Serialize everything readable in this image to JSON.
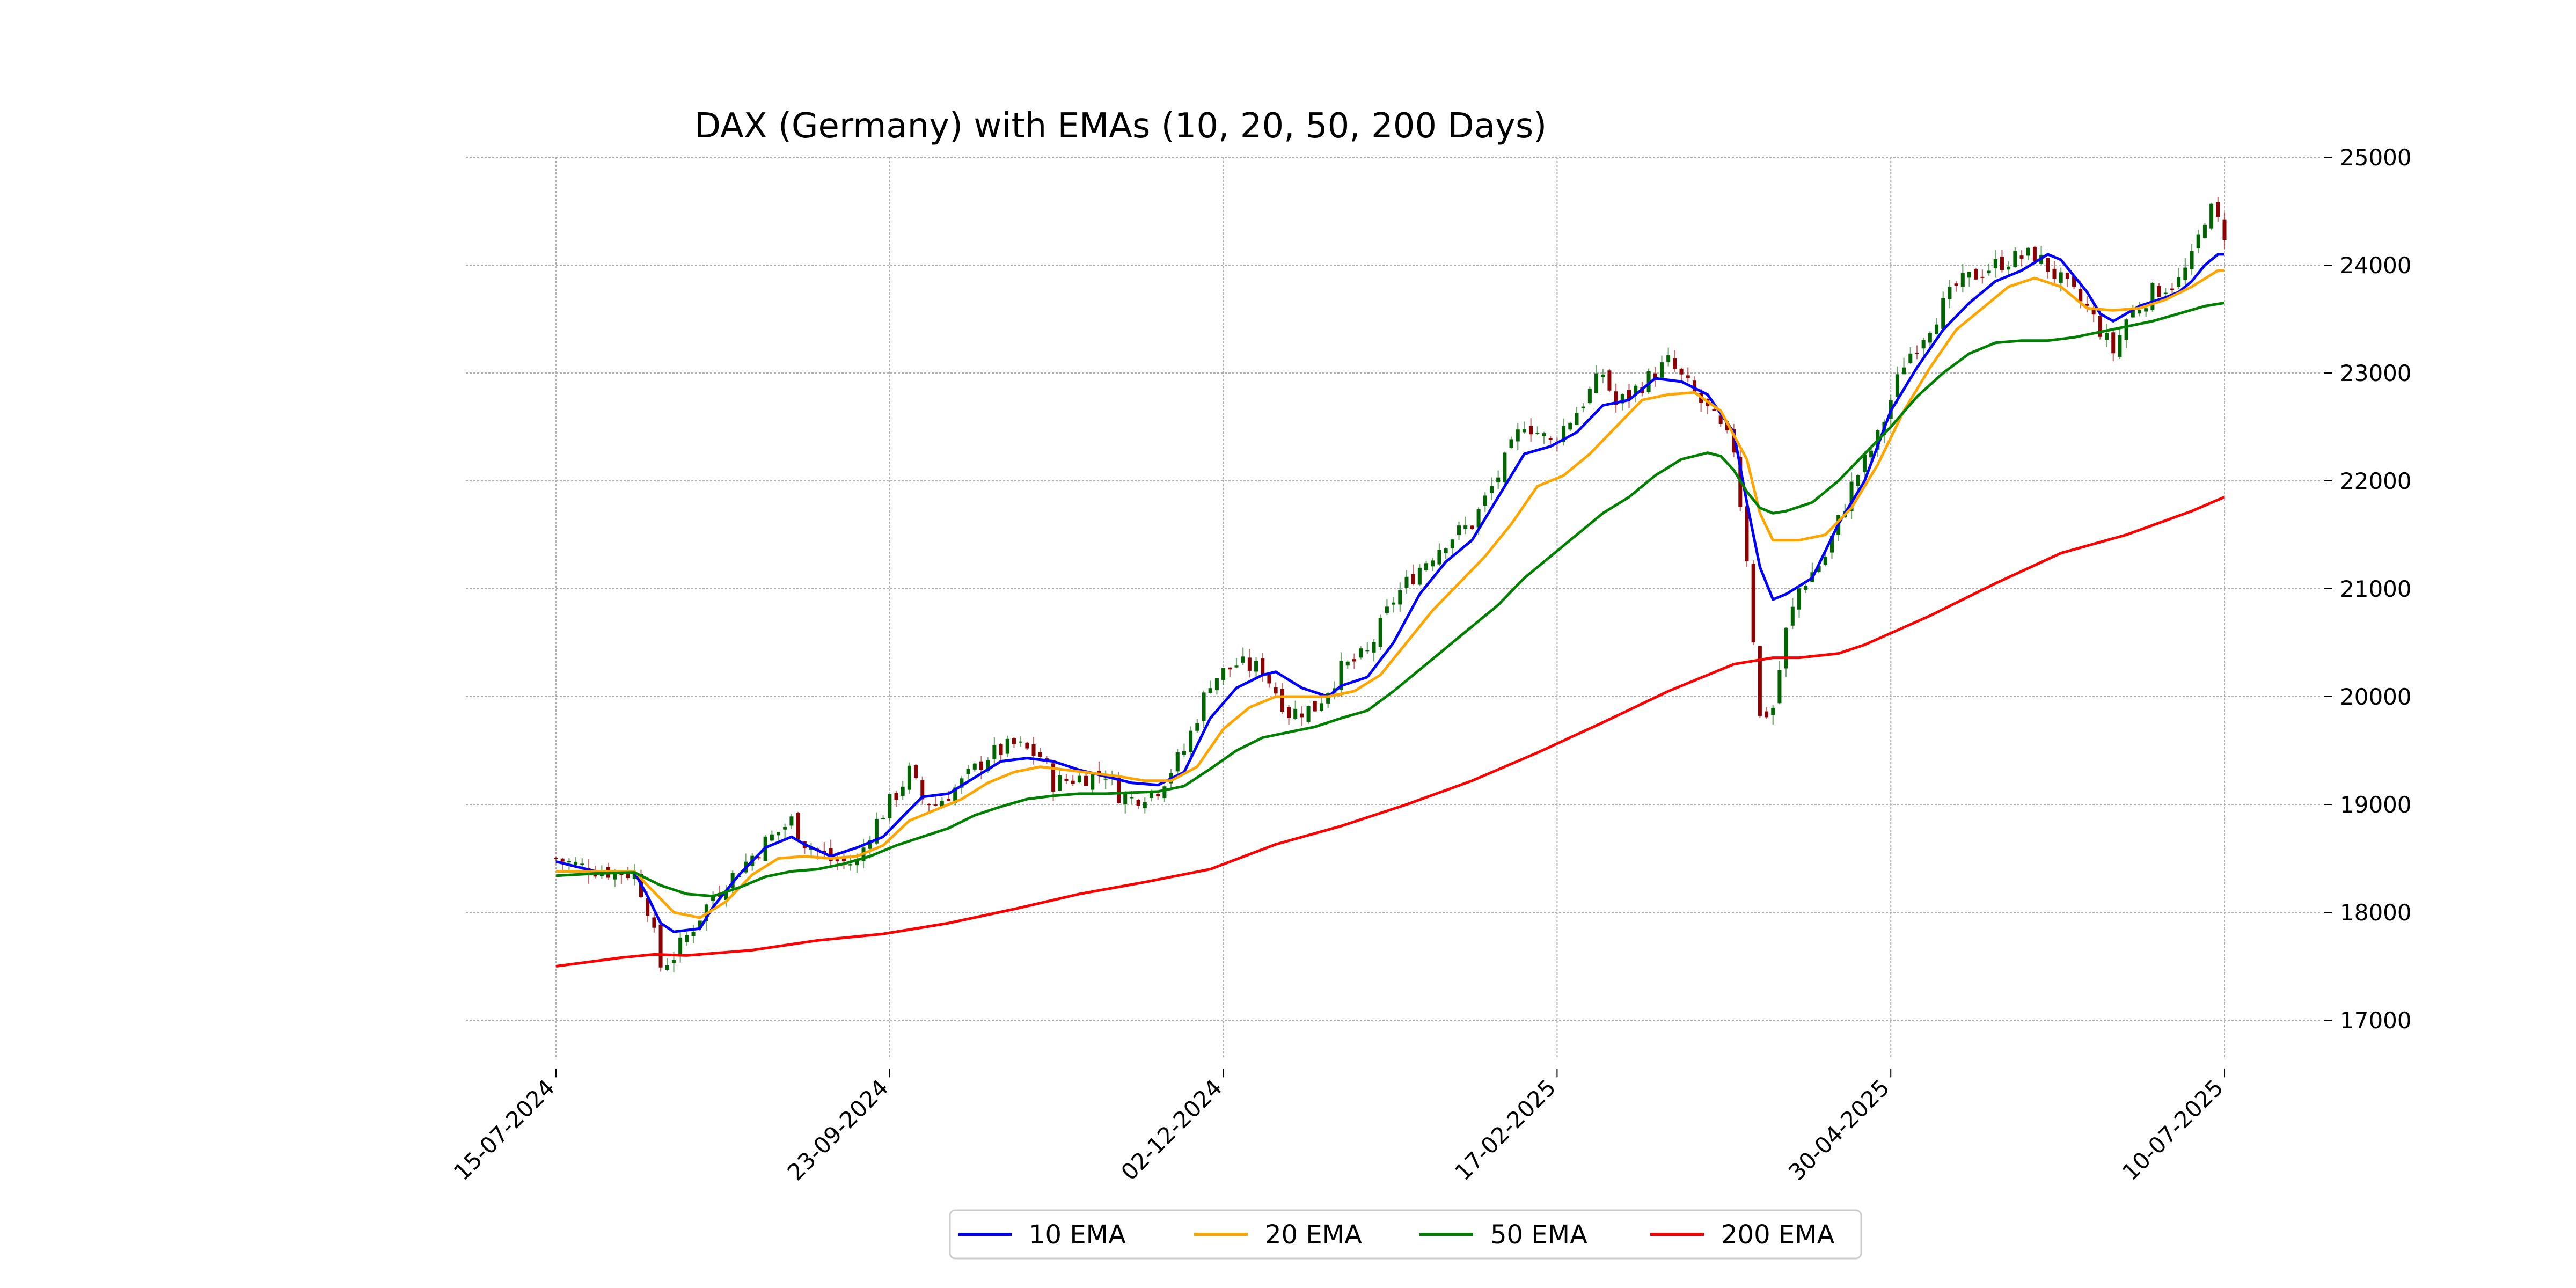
{
  "chart_data": {
    "type": "line",
    "title": "DAX (Germany) with EMAs (10, 20, 50, 200 Days)",
    "xlabel": "",
    "ylabel": "",
    "x_ticks": [
      "15-07-2024",
      "23-09-2024",
      "02-12-2024",
      "17-02-2025",
      "30-04-2025",
      "10-07-2025"
    ],
    "x_range": [
      0,
      255
    ],
    "y_ticks": [
      17000,
      18000,
      19000,
      20000,
      21000,
      22000,
      23000,
      24000,
      25000
    ],
    "ylim": [
      16650,
      25000
    ],
    "grid": true,
    "legend_position": "bottom-center",
    "candlestick": {
      "up_color": "#006400",
      "down_color": "#8b0000",
      "anchors": [
        [
          0,
          18500
        ],
        [
          4,
          18420
        ],
        [
          8,
          18380
        ],
        [
          12,
          18360
        ],
        [
          14,
          18050
        ],
        [
          16,
          17500
        ],
        [
          18,
          17600
        ],
        [
          20,
          17780
        ],
        [
          24,
          18150
        ],
        [
          28,
          18400
        ],
        [
          32,
          18650
        ],
        [
          36,
          18850
        ],
        [
          38,
          18650
        ],
        [
          42,
          18480
        ],
        [
          46,
          18450
        ],
        [
          48,
          18750
        ],
        [
          52,
          19100
        ],
        [
          54,
          19300
        ],
        [
          56,
          19050
        ],
        [
          58,
          19000
        ],
        [
          62,
          19200
        ],
        [
          66,
          19450
        ],
        [
          70,
          19550
        ],
        [
          74,
          19450
        ],
        [
          76,
          19200
        ],
        [
          80,
          19250
        ],
        [
          84,
          19300
        ],
        [
          86,
          19100
        ],
        [
          88,
          19050
        ],
        [
          92,
          19150
        ],
        [
          96,
          19500
        ],
        [
          100,
          20150
        ],
        [
          104,
          20300
        ],
        [
          108,
          20250
        ],
        [
          112,
          19850
        ],
        [
          116,
          19900
        ],
        [
          120,
          20250
        ],
        [
          124,
          20400
        ],
        [
          128,
          20900
        ],
        [
          132,
          21200
        ],
        [
          136,
          21450
        ],
        [
          140,
          21600
        ],
        [
          144,
          22050
        ],
        [
          148,
          22550
        ],
        [
          152,
          22350
        ],
        [
          156,
          22650
        ],
        [
          160,
          23000
        ],
        [
          162,
          22700
        ],
        [
          166,
          22900
        ],
        [
          170,
          23100
        ],
        [
          174,
          22800
        ],
        [
          176,
          22650
        ],
        [
          180,
          22300
        ],
        [
          182,
          21300
        ],
        [
          184,
          19800
        ],
        [
          186,
          19900
        ],
        [
          188,
          20600
        ],
        [
          190,
          21000
        ],
        [
          194,
          21300
        ],
        [
          198,
          21950
        ],
        [
          202,
          22400
        ],
        [
          206,
          23100
        ],
        [
          210,
          23450
        ],
        [
          214,
          23800
        ],
        [
          218,
          23950
        ],
        [
          222,
          24050
        ],
        [
          226,
          24100
        ],
        [
          230,
          23850
        ],
        [
          234,
          23600
        ],
        [
          236,
          23400
        ],
        [
          238,
          23200
        ],
        [
          240,
          23500
        ],
        [
          244,
          23750
        ],
        [
          248,
          23850
        ],
        [
          250,
          24050
        ],
        [
          252,
          24450
        ],
        [
          253,
          24500
        ],
        [
          255,
          24300
        ]
      ]
    },
    "series": [
      {
        "name": "10 EMA",
        "color": "#0000ff",
        "points": [
          [
            0,
            18470
          ],
          [
            6,
            18380
          ],
          [
            12,
            18370
          ],
          [
            14,
            18150
          ],
          [
            16,
            17900
          ],
          [
            18,
            17820
          ],
          [
            22,
            17850
          ],
          [
            24,
            18050
          ],
          [
            28,
            18350
          ],
          [
            32,
            18600
          ],
          [
            36,
            18700
          ],
          [
            38,
            18630
          ],
          [
            42,
            18520
          ],
          [
            46,
            18600
          ],
          [
            50,
            18700
          ],
          [
            54,
            18950
          ],
          [
            56,
            19070
          ],
          [
            60,
            19100
          ],
          [
            64,
            19250
          ],
          [
            68,
            19400
          ],
          [
            72,
            19430
          ],
          [
            76,
            19400
          ],
          [
            80,
            19320
          ],
          [
            84,
            19260
          ],
          [
            88,
            19200
          ],
          [
            92,
            19180
          ],
          [
            96,
            19300
          ],
          [
            100,
            19800
          ],
          [
            104,
            20080
          ],
          [
            108,
            20200
          ],
          [
            110,
            20230
          ],
          [
            114,
            20080
          ],
          [
            118,
            20000
          ],
          [
            120,
            20100
          ],
          [
            124,
            20180
          ],
          [
            128,
            20500
          ],
          [
            132,
            20950
          ],
          [
            136,
            21250
          ],
          [
            140,
            21450
          ],
          [
            144,
            21850
          ],
          [
            148,
            22250
          ],
          [
            152,
            22320
          ],
          [
            156,
            22450
          ],
          [
            160,
            22700
          ],
          [
            164,
            22750
          ],
          [
            168,
            22950
          ],
          [
            172,
            22920
          ],
          [
            176,
            22800
          ],
          [
            180,
            22450
          ],
          [
            182,
            21800
          ],
          [
            184,
            21200
          ],
          [
            186,
            20900
          ],
          [
            188,
            20950
          ],
          [
            192,
            21100
          ],
          [
            196,
            21600
          ],
          [
            200,
            22000
          ],
          [
            204,
            22650
          ],
          [
            208,
            23050
          ],
          [
            212,
            23400
          ],
          [
            216,
            23650
          ],
          [
            220,
            23850
          ],
          [
            224,
            23950
          ],
          [
            228,
            24100
          ],
          [
            230,
            24050
          ],
          [
            234,
            23750
          ],
          [
            236,
            23550
          ],
          [
            238,
            23480
          ],
          [
            242,
            23620
          ],
          [
            246,
            23700
          ],
          [
            248,
            23750
          ],
          [
            250,
            23850
          ],
          [
            252,
            24000
          ],
          [
            254,
            24100
          ],
          [
            255,
            24100
          ]
        ]
      },
      {
        "name": "20 EMA",
        "color": "#ffa500",
        "points": [
          [
            0,
            18380
          ],
          [
            6,
            18380
          ],
          [
            12,
            18380
          ],
          [
            14,
            18250
          ],
          [
            18,
            18000
          ],
          [
            22,
            17950
          ],
          [
            26,
            18100
          ],
          [
            30,
            18350
          ],
          [
            34,
            18500
          ],
          [
            38,
            18520
          ],
          [
            42,
            18500
          ],
          [
            46,
            18520
          ],
          [
            50,
            18620
          ],
          [
            54,
            18850
          ],
          [
            58,
            18950
          ],
          [
            62,
            19050
          ],
          [
            66,
            19200
          ],
          [
            70,
            19300
          ],
          [
            74,
            19350
          ],
          [
            78,
            19320
          ],
          [
            82,
            19290
          ],
          [
            86,
            19260
          ],
          [
            90,
            19220
          ],
          [
            94,
            19220
          ],
          [
            98,
            19350
          ],
          [
            102,
            19700
          ],
          [
            106,
            19900
          ],
          [
            110,
            20000
          ],
          [
            114,
            20000
          ],
          [
            118,
            20000
          ],
          [
            122,
            20050
          ],
          [
            126,
            20200
          ],
          [
            130,
            20500
          ],
          [
            134,
            20800
          ],
          [
            138,
            21050
          ],
          [
            142,
            21300
          ],
          [
            146,
            21600
          ],
          [
            150,
            21950
          ],
          [
            154,
            22050
          ],
          [
            158,
            22250
          ],
          [
            162,
            22500
          ],
          [
            166,
            22750
          ],
          [
            170,
            22800
          ],
          [
            174,
            22820
          ],
          [
            178,
            22650
          ],
          [
            182,
            22200
          ],
          [
            184,
            21700
          ],
          [
            186,
            21450
          ],
          [
            190,
            21450
          ],
          [
            194,
            21500
          ],
          [
            198,
            21750
          ],
          [
            202,
            22150
          ],
          [
            206,
            22650
          ],
          [
            210,
            23050
          ],
          [
            214,
            23400
          ],
          [
            218,
            23600
          ],
          [
            222,
            23800
          ],
          [
            226,
            23880
          ],
          [
            230,
            23800
          ],
          [
            234,
            23600
          ],
          [
            238,
            23580
          ],
          [
            242,
            23600
          ],
          [
            246,
            23680
          ],
          [
            250,
            23800
          ],
          [
            254,
            23950
          ],
          [
            255,
            23950
          ]
        ]
      },
      {
        "name": "50 EMA",
        "color": "#008000",
        "points": [
          [
            0,
            18340
          ],
          [
            6,
            18360
          ],
          [
            12,
            18370
          ],
          [
            16,
            18250
          ],
          [
            20,
            18170
          ],
          [
            24,
            18150
          ],
          [
            28,
            18230
          ],
          [
            32,
            18330
          ],
          [
            36,
            18380
          ],
          [
            40,
            18400
          ],
          [
            44,
            18450
          ],
          [
            48,
            18520
          ],
          [
            52,
            18620
          ],
          [
            56,
            18700
          ],
          [
            60,
            18780
          ],
          [
            64,
            18900
          ],
          [
            68,
            18980
          ],
          [
            72,
            19050
          ],
          [
            76,
            19080
          ],
          [
            80,
            19100
          ],
          [
            84,
            19100
          ],
          [
            88,
            19110
          ],
          [
            92,
            19120
          ],
          [
            96,
            19170
          ],
          [
            100,
            19330
          ],
          [
            104,
            19500
          ],
          [
            108,
            19620
          ],
          [
            112,
            19670
          ],
          [
            116,
            19720
          ],
          [
            120,
            19800
          ],
          [
            124,
            19870
          ],
          [
            128,
            20050
          ],
          [
            132,
            20250
          ],
          [
            136,
            20450
          ],
          [
            140,
            20650
          ],
          [
            144,
            20850
          ],
          [
            148,
            21100
          ],
          [
            152,
            21300
          ],
          [
            156,
            21500
          ],
          [
            160,
            21700
          ],
          [
            164,
            21850
          ],
          [
            168,
            22050
          ],
          [
            172,
            22200
          ],
          [
            176,
            22260
          ],
          [
            178,
            22230
          ],
          [
            180,
            22100
          ],
          [
            182,
            21900
          ],
          [
            184,
            21750
          ],
          [
            186,
            21700
          ],
          [
            188,
            21720
          ],
          [
            192,
            21800
          ],
          [
            196,
            22000
          ],
          [
            200,
            22250
          ],
          [
            204,
            22500
          ],
          [
            208,
            22780
          ],
          [
            212,
            23000
          ],
          [
            216,
            23180
          ],
          [
            220,
            23280
          ],
          [
            224,
            23300
          ],
          [
            228,
            23300
          ],
          [
            232,
            23330
          ],
          [
            236,
            23380
          ],
          [
            240,
            23430
          ],
          [
            244,
            23480
          ],
          [
            248,
            23550
          ],
          [
            252,
            23620
          ],
          [
            255,
            23650
          ]
        ]
      },
      {
        "name": "200 EMA",
        "color": "#ff0000",
        "points": [
          [
            0,
            17500
          ],
          [
            10,
            17580
          ],
          [
            15,
            17610
          ],
          [
            20,
            17600
          ],
          [
            30,
            17650
          ],
          [
            40,
            17740
          ],
          [
            50,
            17800
          ],
          [
            60,
            17900
          ],
          [
            70,
            18030
          ],
          [
            80,
            18170
          ],
          [
            90,
            18280
          ],
          [
            100,
            18400
          ],
          [
            110,
            18630
          ],
          [
            120,
            18800
          ],
          [
            130,
            19000
          ],
          [
            140,
            19220
          ],
          [
            150,
            19480
          ],
          [
            160,
            19760
          ],
          [
            170,
            20050
          ],
          [
            180,
            20300
          ],
          [
            186,
            20360
          ],
          [
            190,
            20360
          ],
          [
            196,
            20400
          ],
          [
            200,
            20480
          ],
          [
            210,
            20750
          ],
          [
            220,
            21050
          ],
          [
            230,
            21330
          ],
          [
            240,
            21500
          ],
          [
            250,
            21720
          ],
          [
            255,
            21850
          ]
        ]
      }
    ]
  }
}
